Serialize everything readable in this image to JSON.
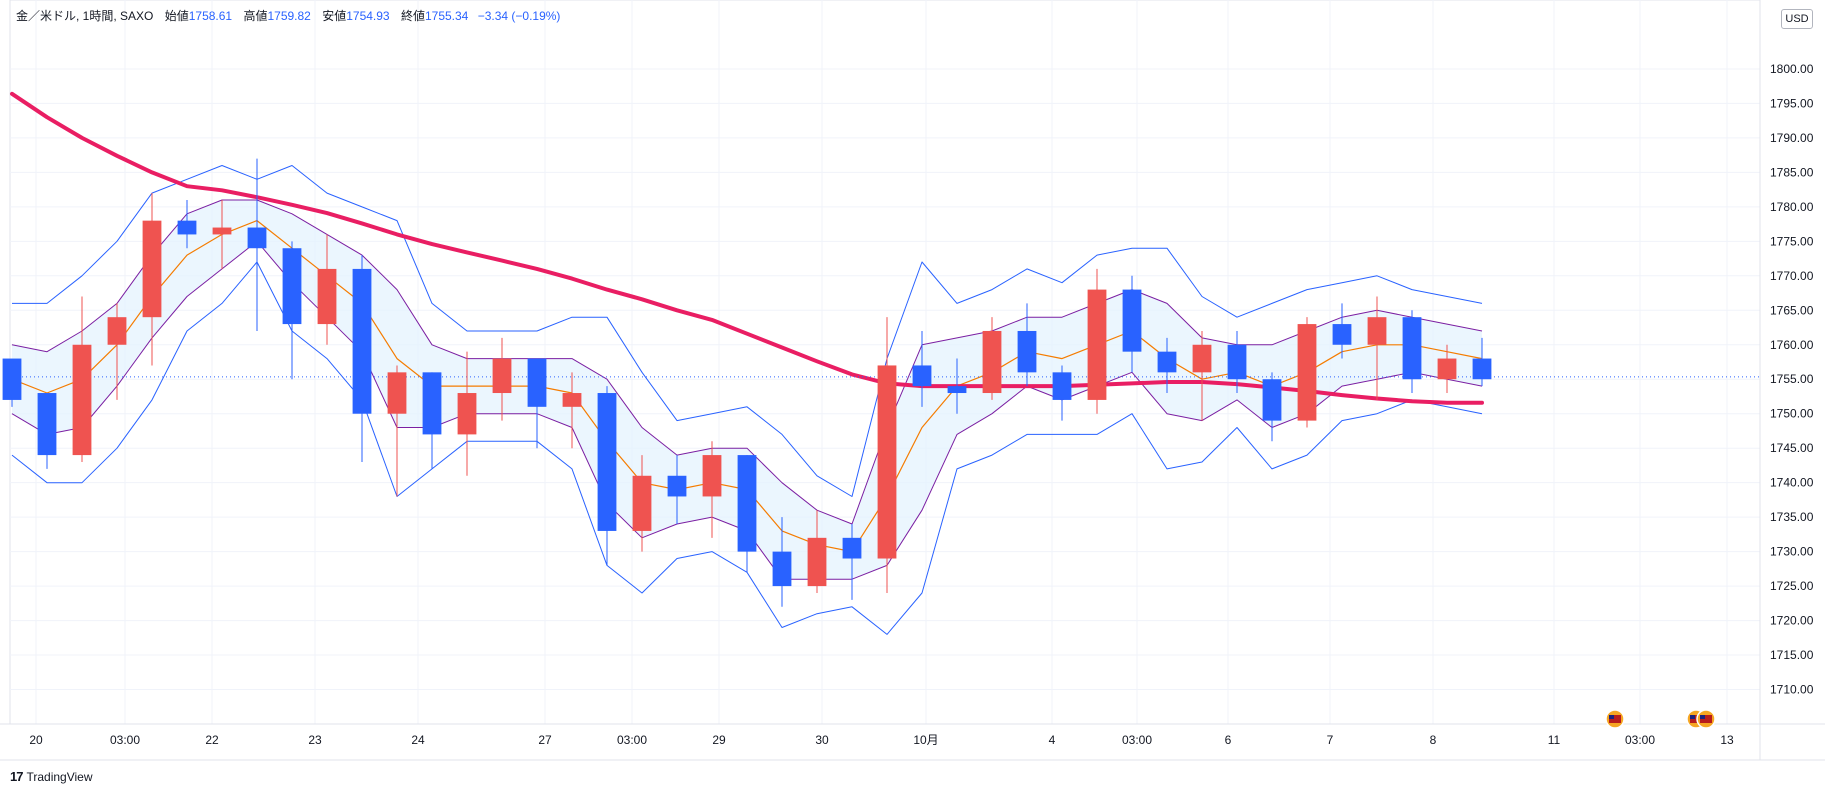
{
  "header": {
    "symbol": "金／米ドル, 1時間, SAXO",
    "open_label": "始値",
    "open_value": "1758.61",
    "high_label": "高値",
    "high_value": "1759.82",
    "low_label": "安値",
    "low_value": "1754.93",
    "close_label": "終値",
    "close_value": "1755.34",
    "change": "−3.34 (−0.19%)"
  },
  "currency_badge": "USD",
  "brand": "TradingView",
  "colors": {
    "up": "#ef5350",
    "down": "#2962ff",
    "ma_long": "#e91e63",
    "bb_inner": "#7b1fa2",
    "bb_outer": "#2962ff",
    "bb_mid": "#f57c00",
    "bb_fill": "#e3f2fd"
  },
  "chart_data": {
    "type": "candlestick",
    "instrument": "金／米ドル",
    "interval": "1時間",
    "source": "SAXO",
    "currency": "USD",
    "ylim": [
      1705,
      1810
    ],
    "y_ticks": [
      1710,
      1715,
      1720,
      1725,
      1730,
      1735,
      1740,
      1745,
      1750,
      1755,
      1760,
      1765,
      1770,
      1775,
      1780,
      1785,
      1790,
      1795,
      1800
    ],
    "y_tick_labels": [
      "1710.00",
      "1715.00",
      "1720.00",
      "1725.00",
      "1730.00",
      "1735.00",
      "1740.00",
      "1745.00",
      "1750.00",
      "1755.00",
      "1760.00",
      "1765.00",
      "1770.00",
      "1775.00",
      "1780.00",
      "1785.00",
      "1790.00",
      "1795.00",
      "1800.00"
    ],
    "x_tick_labels": [
      "20",
      "03:00",
      "22",
      "23",
      "24",
      "27",
      "03:00",
      "29",
      "30",
      "10月",
      "4",
      "03:00",
      "6",
      "7",
      "8",
      "11",
      "03:00",
      "13"
    ],
    "last_price": 1755.34,
    "grid": true,
    "series": [
      {
        "name": "price",
        "kind": "ohlc",
        "points": [
          [
            1758,
            1756,
            1751,
            1752
          ],
          [
            1753,
            1753,
            1742,
            1744
          ],
          [
            1744,
            1767,
            1743,
            1760
          ],
          [
            1760,
            1766,
            1752,
            1764
          ],
          [
            1764,
            1782,
            1757,
            1778
          ],
          [
            1778,
            1781,
            1774,
            1776
          ],
          [
            1776,
            1781,
            1771,
            1777
          ],
          [
            1777,
            1787,
            1762,
            1774
          ],
          [
            1774,
            1775,
            1755,
            1763
          ],
          [
            1763,
            1776,
            1760,
            1771
          ],
          [
            1771,
            1773,
            1743,
            1750
          ],
          [
            1750,
            1757,
            1738,
            1756
          ],
          [
            1756,
            1756,
            1742,
            1747
          ],
          [
            1747,
            1759,
            1741,
            1753
          ],
          [
            1753,
            1761,
            1749,
            1758
          ],
          [
            1758,
            1758,
            1745,
            1751
          ],
          [
            1751,
            1756,
            1745,
            1753
          ],
          [
            1753,
            1754,
            1728,
            1733
          ],
          [
            1733,
            1744,
            1730,
            1741
          ],
          [
            1741,
            1744,
            1734,
            1738
          ],
          [
            1738,
            1746,
            1732,
            1744
          ],
          [
            1744,
            1744,
            1727,
            1730
          ],
          [
            1730,
            1735,
            1722,
            1725
          ],
          [
            1725,
            1736,
            1724,
            1732
          ],
          [
            1732,
            1734,
            1723,
            1729
          ],
          [
            1729,
            1764,
            1724,
            1757
          ],
          [
            1757,
            1762,
            1751,
            1754
          ],
          [
            1754,
            1758,
            1750,
            1753
          ],
          [
            1753,
            1764,
            1752,
            1762
          ],
          [
            1762,
            1766,
            1754,
            1756
          ],
          [
            1756,
            1757,
            1749,
            1752
          ],
          [
            1752,
            1771,
            1750,
            1768
          ],
          [
            1768,
            1770,
            1756,
            1759
          ],
          [
            1759,
            1761,
            1753,
            1756
          ],
          [
            1756,
            1762,
            1749,
            1760
          ],
          [
            1760,
            1762,
            1753,
            1755
          ],
          [
            1755,
            1756,
            1746,
            1749
          ],
          [
            1749,
            1764,
            1748,
            1763
          ],
          [
            1763,
            1766,
            1758,
            1760
          ],
          [
            1760,
            1767,
            1752,
            1764
          ],
          [
            1764,
            1765,
            1753,
            1755
          ],
          [
            1755,
            1760,
            1753,
            1758
          ],
          [
            1758,
            1761,
            1754,
            1755
          ]
        ]
      },
      {
        "name": "MA200",
        "kind": "line",
        "values": [
          1796.4,
          1793.0,
          1790.0,
          1787.4,
          1785.0,
          1783.0,
          1782.4,
          1781.4,
          1780.3,
          1779.1,
          1777.6,
          1776.0,
          1774.6,
          1773.4,
          1772.2,
          1771.0,
          1769.6,
          1768.0,
          1766.6,
          1765.0,
          1763.6,
          1761.6,
          1759.6,
          1757.6,
          1755.7,
          1754.4,
          1754.0,
          1754.0,
          1754.0,
          1754.0,
          1754.0,
          1754.2,
          1754.4,
          1754.6,
          1754.6,
          1754.3,
          1753.8,
          1753.3,
          1752.7,
          1752.2,
          1751.8,
          1751.6,
          1751.6
        ]
      },
      {
        "name": "BB20 basis",
        "kind": "line",
        "values": [
          1755.0,
          1753.0,
          1755.0,
          1760.0,
          1767.0,
          1773.0,
          1776.0,
          1778.0,
          1774.0,
          1770.0,
          1766.0,
          1758.0,
          1754.0,
          1754.0,
          1754.0,
          1754.0,
          1753.0,
          1746.0,
          1740.0,
          1739.0,
          1740.0,
          1739.0,
          1733.0,
          1731.0,
          1730.0,
          1738.0,
          1748.0,
          1754.0,
          1756.0,
          1759.0,
          1758.0,
          1760.0,
          1762.0,
          1758.0,
          1755.0,
          1756.0,
          1754.0,
          1756.0,
          1759.0,
          1760.0,
          1760.0,
          1759.0,
          1758.0
        ]
      },
      {
        "name": "BB20 upper 1",
        "kind": "line",
        "values": [
          1760.0,
          1759.0,
          1762.0,
          1766.0,
          1773.0,
          1779.0,
          1781.0,
          1781.0,
          1779.0,
          1776.0,
          1773.0,
          1768.0,
          1760.0,
          1758.0,
          1758.0,
          1758.0,
          1758.0,
          1755.0,
          1748.0,
          1744.0,
          1745.0,
          1745.0,
          1740.0,
          1736.0,
          1734.0,
          1748.0,
          1760.0,
          1761.0,
          1762.0,
          1764.0,
          1764.0,
          1766.0,
          1768.0,
          1766.0,
          1761.0,
          1760.0,
          1760.0,
          1762.0,
          1764.0,
          1765.0,
          1764.0,
          1763.0,
          1762.0
        ]
      },
      {
        "name": "BB20 lower 1",
        "kind": "line",
        "values": [
          1750.0,
          1747.0,
          1748.0,
          1754.0,
          1761.0,
          1767.0,
          1771.0,
          1775.0,
          1769.0,
          1764.0,
          1759.0,
          1748.0,
          1748.0,
          1750.0,
          1750.0,
          1750.0,
          1748.0,
          1737.0,
          1732.0,
          1734.0,
          1735.0,
          1733.0,
          1726.0,
          1726.0,
          1726.0,
          1728.0,
          1736.0,
          1747.0,
          1750.0,
          1754.0,
          1752.0,
          1754.0,
          1756.0,
          1750.0,
          1749.0,
          1752.0,
          1748.0,
          1750.0,
          1754.0,
          1755.0,
          1756.0,
          1755.0,
          1754.0
        ]
      },
      {
        "name": "BB20 upper 2",
        "kind": "line",
        "values": [
          1766.0,
          1766.0,
          1770.0,
          1775.0,
          1782.0,
          1784.0,
          1786.0,
          1784.0,
          1786.0,
          1782.0,
          1780.0,
          1778.0,
          1766.0,
          1762.0,
          1762.0,
          1762.0,
          1764.0,
          1764.0,
          1756.0,
          1749.0,
          1750.0,
          1751.0,
          1747.0,
          1741.0,
          1738.0,
          1758.0,
          1772.0,
          1766.0,
          1768.0,
          1771.0,
          1769.0,
          1773.0,
          1774.0,
          1774.0,
          1767.0,
          1764.0,
          1766.0,
          1768.0,
          1769.0,
          1770.0,
          1768.0,
          1767.0,
          1766.0
        ]
      },
      {
        "name": "BB20 lower 2",
        "kind": "line",
        "values": [
          1744.0,
          1740.0,
          1740.0,
          1745.0,
          1752.0,
          1762.0,
          1766.0,
          1772.0,
          1762.0,
          1758.0,
          1752.0,
          1738.0,
          1742.0,
          1746.0,
          1746.0,
          1746.0,
          1742.0,
          1728.0,
          1724.0,
          1729.0,
          1730.0,
          1727.0,
          1719.0,
          1721.0,
          1722.0,
          1718.0,
          1724.0,
          1742.0,
          1744.0,
          1747.0,
          1747.0,
          1747.0,
          1750.0,
          1742.0,
          1743.0,
          1748.0,
          1742.0,
          1744.0,
          1749.0,
          1750.0,
          1752.0,
          1751.0,
          1750.0
        ]
      }
    ],
    "event_markers": [
      "us-flag-icon",
      "us-flag-icon",
      "us-flag-icon"
    ]
  }
}
